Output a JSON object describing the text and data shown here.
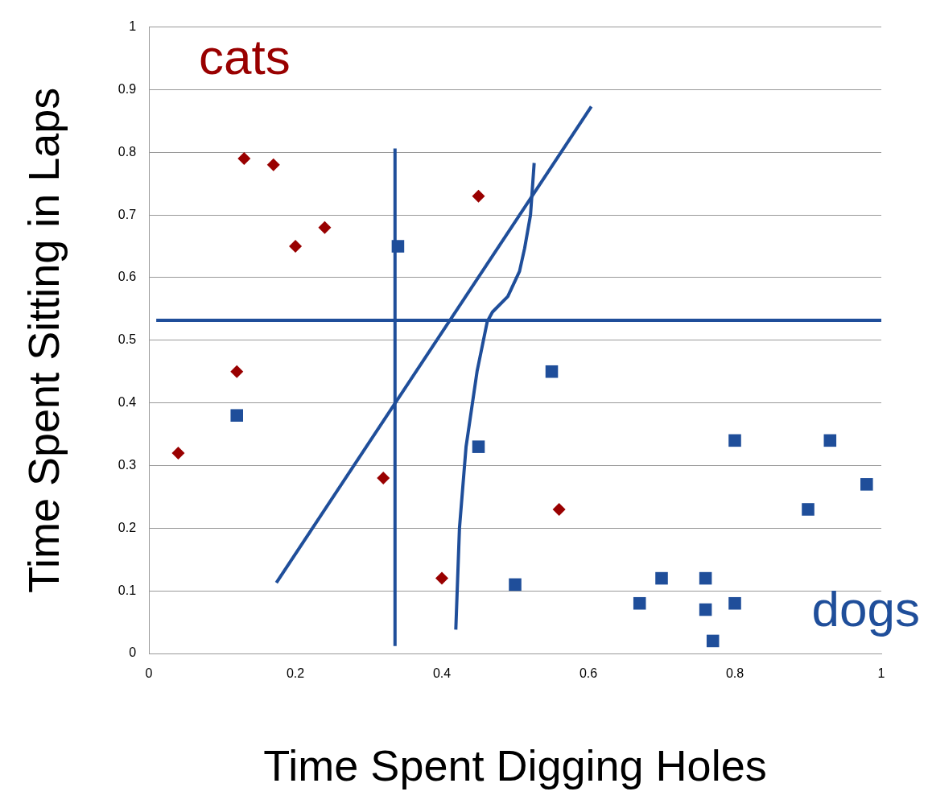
{
  "chart_data": {
    "type": "scatter",
    "xlabel": "Time Spent Digging Holes",
    "ylabel": "Time Spent Sitting in Laps",
    "xlim": [
      0,
      1
    ],
    "xticks": [
      0,
      0.2,
      0.4,
      0.6,
      0.8,
      1
    ],
    "ylim": [
      0,
      1
    ],
    "yticks": [
      0,
      0.1,
      0.2,
      0.3,
      0.4,
      0.5,
      0.6,
      0.7,
      0.8,
      0.9,
      1
    ],
    "grid": "y",
    "legend": false,
    "series": [
      {
        "name": "cats",
        "color": "#990000",
        "marker": "diamond",
        "x": [
          0.04,
          0.12,
          0.13,
          0.17,
          0.2,
          0.24,
          0.32,
          0.4,
          0.45,
          0.56
        ],
        "values": [
          0.32,
          0.45,
          0.79,
          0.78,
          0.65,
          0.68,
          0.28,
          0.12,
          0.73,
          0.23
        ]
      },
      {
        "name": "dogs",
        "color": "#1f4e9a",
        "marker": "square",
        "x": [
          0.12,
          0.34,
          0.45,
          0.5,
          0.55,
          0.67,
          0.7,
          0.76,
          0.76,
          0.77,
          0.8,
          0.8,
          0.9,
          0.93,
          0.98
        ],
        "values": [
          0.38,
          0.65,
          0.33,
          0.11,
          0.45,
          0.08,
          0.12,
          0.12,
          0.07,
          0.02,
          0.34,
          0.08,
          0.23,
          0.34,
          0.27
        ]
      },
      {
        "type": "line",
        "color": "#1f4e9a",
        "marker": "none",
        "x": [
          0.336,
          0.336
        ],
        "values": [
          0.012,
          0.806
        ]
      },
      {
        "type": "line",
        "color": "#1f4e9a",
        "marker": "none",
        "x": [
          0.01,
          1
        ],
        "values": [
          0.532,
          0.532
        ]
      },
      {
        "type": "line",
        "color": "#1f4e9a",
        "marker": "none",
        "x": [
          0.174,
          0.604
        ],
        "values": [
          0.113,
          0.873
        ]
      },
      {
        "type": "line",
        "color": "#1f4e9a",
        "marker": "none",
        "x": [
          0.419,
          0.424,
          0.433,
          0.448,
          0.462,
          0.469,
          0.49,
          0.506,
          0.513,
          0.521,
          0.526
        ],
        "values": [
          0.038,
          0.2,
          0.33,
          0.45,
          0.53,
          0.545,
          0.57,
          0.61,
          0.647,
          0.7,
          0.783
        ]
      }
    ]
  }
}
